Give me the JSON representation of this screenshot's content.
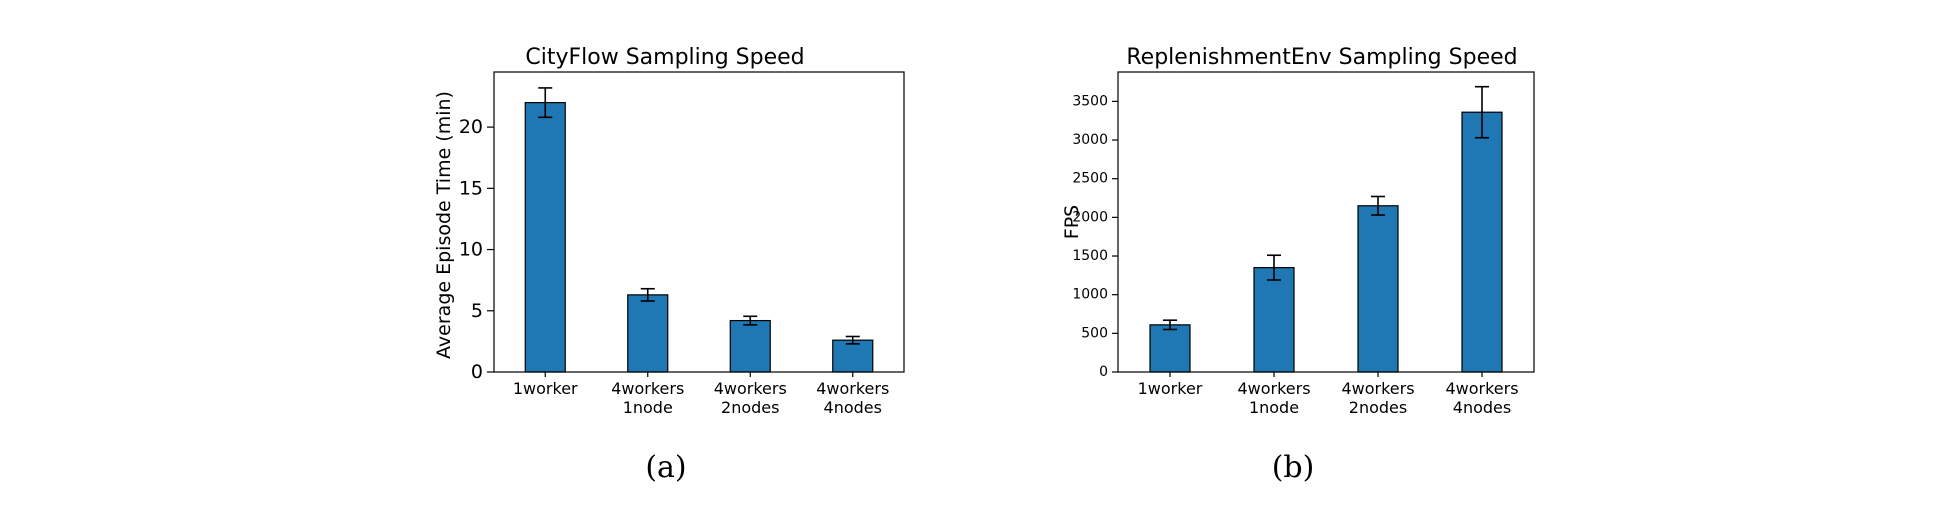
{
  "chart_data": [
    {
      "type": "bar",
      "title": "CityFlow Sampling Speed",
      "xlabel": "",
      "ylabel": "Average Episode Time (min)",
      "categories": [
        "1worker",
        "4workers\n1node",
        "4workers\n2nodes",
        "4workers\n4nodes"
      ],
      "values": [
        22.0,
        6.3,
        4.2,
        2.6
      ],
      "errors": [
        1.2,
        0.5,
        0.35,
        0.3
      ],
      "ylim": [
        0,
        24.5
      ],
      "yticks": [
        0,
        5,
        10,
        15,
        20
      ],
      "bar_color": "#1f77b4",
      "grid": false,
      "caption": "(a)"
    },
    {
      "type": "bar",
      "title": "ReplenishmentEnv Sampling Speed",
      "xlabel": "",
      "ylabel": "FPS",
      "categories": [
        "1worker",
        "4workers\n1node",
        "4workers\n2nodes",
        "4workers\n4nodes"
      ],
      "values": [
        610,
        1350,
        2150,
        3360
      ],
      "errors": [
        60,
        160,
        120,
        330
      ],
      "ylim": [
        0,
        3880
      ],
      "yticks": [
        0,
        500,
        1000,
        1500,
        2000,
        2500,
        3000,
        3500
      ],
      "bar_color": "#1f77b4",
      "grid": false,
      "caption": "(b)"
    }
  ]
}
